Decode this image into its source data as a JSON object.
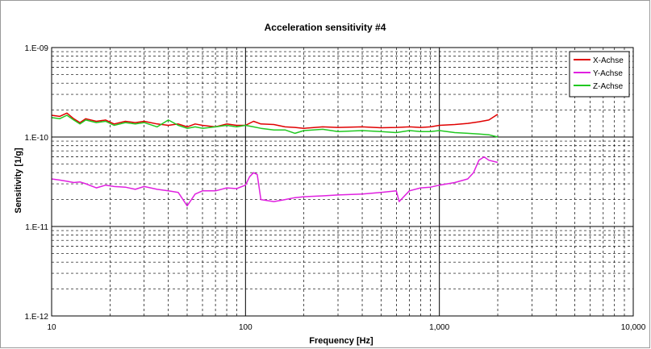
{
  "chart_data": {
    "type": "line",
    "title": "Acceleration sensitivity #4",
    "xlabel": "Frequency [Hz]",
    "ylabel": "Sensitivity [1/g]",
    "x_scale": "log",
    "y_scale": "log",
    "xlim": [
      10,
      10000
    ],
    "ylim": [
      1e-12,
      1e-09
    ],
    "x_ticks": [
      10,
      100,
      1000,
      10000
    ],
    "x_tick_labels": [
      "10",
      "100",
      "1,000",
      "10,000"
    ],
    "y_ticks": [
      1e-12,
      1e-11,
      1e-10,
      1e-09
    ],
    "y_tick_labels": [
      "1.E-12",
      "1.E-11",
      "1.E-10",
      "1.E-09"
    ],
    "grid": true,
    "legend_position": "top-right",
    "series": [
      {
        "name": "X-Achse",
        "color": "#e00000",
        "x": [
          10,
          11,
          12,
          13,
          14,
          15,
          17,
          19,
          21,
          24,
          27,
          30,
          35,
          40,
          45,
          50,
          55,
          60,
          70,
          80,
          90,
          100,
          110,
          120,
          140,
          160,
          180,
          200,
          250,
          300,
          400,
          500,
          600,
          700,
          800,
          900,
          1000,
          1200,
          1400,
          1600,
          1800,
          2000
        ],
        "y": [
          1.75e-10,
          1.7e-10,
          1.85e-10,
          1.6e-10,
          1.45e-10,
          1.6e-10,
          1.5e-10,
          1.55e-10,
          1.4e-10,
          1.5e-10,
          1.45e-10,
          1.5e-10,
          1.4e-10,
          1.35e-10,
          1.4e-10,
          1.3e-10,
          1.4e-10,
          1.35e-10,
          1.3e-10,
          1.4e-10,
          1.35e-10,
          1.35e-10,
          1.5e-10,
          1.4e-10,
          1.38e-10,
          1.3e-10,
          1.28e-10,
          1.25e-10,
          1.3e-10,
          1.28e-10,
          1.3e-10,
          1.27e-10,
          1.28e-10,
          1.3e-10,
          1.28e-10,
          1.3e-10,
          1.35e-10,
          1.38e-10,
          1.42e-10,
          1.48e-10,
          1.55e-10,
          1.8e-10
        ]
      },
      {
        "name": "Y-Achse",
        "color": "#e020e0",
        "x": [
          10,
          11,
          12,
          13,
          14,
          15,
          17,
          19,
          21,
          24,
          27,
          30,
          35,
          40,
          45,
          50,
          55,
          60,
          70,
          80,
          90,
          100,
          105,
          110,
          115,
          120,
          140,
          160,
          180,
          200,
          250,
          300,
          400,
          500,
          600,
          620,
          700,
          800,
          900,
          1000,
          1200,
          1400,
          1500,
          1600,
          1700,
          1800,
          2000
        ],
        "y": [
          3.4e-11,
          3.3e-11,
          3.2e-11,
          3.1e-11,
          3.15e-11,
          3e-11,
          2.7e-11,
          2.9e-11,
          2.8e-11,
          2.75e-11,
          2.6e-11,
          2.8e-11,
          2.6e-11,
          2.5e-11,
          2.4e-11,
          1.7e-11,
          2.3e-11,
          2.5e-11,
          2.5e-11,
          2.7e-11,
          2.65e-11,
          2.9e-11,
          3.6e-11,
          4e-11,
          3.8e-11,
          2e-11,
          1.9e-11,
          2e-11,
          2.1e-11,
          2.15e-11,
          2.2e-11,
          2.25e-11,
          2.3e-11,
          2.4e-11,
          2.5e-11,
          1.9e-11,
          2.5e-11,
          2.7e-11,
          2.75e-11,
          2.9e-11,
          3.1e-11,
          3.4e-11,
          4e-11,
          5.5e-11,
          6e-11,
          5.5e-11,
          5.2e-11
        ]
      },
      {
        "name": "Z-Achse",
        "color": "#20c820",
        "x": [
          10,
          11,
          12,
          13,
          14,
          15,
          17,
          19,
          21,
          24,
          27,
          30,
          35,
          40,
          45,
          50,
          55,
          60,
          70,
          80,
          90,
          100,
          110,
          120,
          140,
          160,
          180,
          200,
          250,
          300,
          400,
          500,
          600,
          700,
          800,
          900,
          1000,
          1200,
          1400,
          1600,
          1800,
          2000
        ],
        "y": [
          1.65e-10,
          1.6e-10,
          1.75e-10,
          1.55e-10,
          1.4e-10,
          1.55e-10,
          1.45e-10,
          1.5e-10,
          1.35e-10,
          1.45e-10,
          1.4e-10,
          1.45e-10,
          1.3e-10,
          1.55e-10,
          1.35e-10,
          1.25e-10,
          1.3e-10,
          1.25e-10,
          1.3e-10,
          1.35e-10,
          1.3e-10,
          1.35e-10,
          1.3e-10,
          1.25e-10,
          1.2e-10,
          1.2e-10,
          1.1e-10,
          1.18e-10,
          1.22e-10,
          1.15e-10,
          1.18e-10,
          1.15e-10,
          1.12e-10,
          1.18e-10,
          1.15e-10,
          1.15e-10,
          1.18e-10,
          1.12e-10,
          1.1e-10,
          1.08e-10,
          1.06e-10,
          1e-10
        ]
      }
    ]
  }
}
